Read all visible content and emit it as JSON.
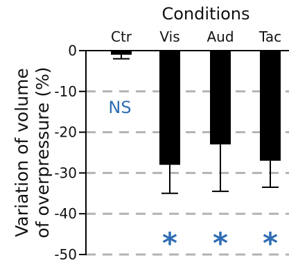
{
  "chart_data": {
    "type": "bar",
    "title": "Conditions",
    "ylabel": "Variation of volume of overpressure (%)",
    "ylabel_lines": [
      "Variation of volume",
      "of overpressure (%)"
    ],
    "xlabel": "",
    "categories": [
      "Ctr",
      "Vis",
      "Aud",
      "Tac"
    ],
    "values": [
      -1,
      -28,
      -23,
      -27
    ],
    "error_low": [
      -2,
      -35,
      -34.5,
      -33.5
    ],
    "error_high": [
      0,
      -28,
      -23,
      -27
    ],
    "annotations": [
      "NS",
      "*",
      "*",
      "*"
    ],
    "ylim": [
      -50,
      0
    ],
    "yticks": [
      0,
      -10,
      -20,
      -30,
      -40,
      -50
    ],
    "ytick_labels": [
      "0",
      "-10",
      "-20",
      "-30",
      "-40",
      "-50"
    ],
    "grid": true,
    "legend": "none",
    "colors": {
      "bars": "#000000",
      "grid": "#b3b3b3",
      "annotation": "#2f6db3",
      "text": "#111111"
    }
  }
}
